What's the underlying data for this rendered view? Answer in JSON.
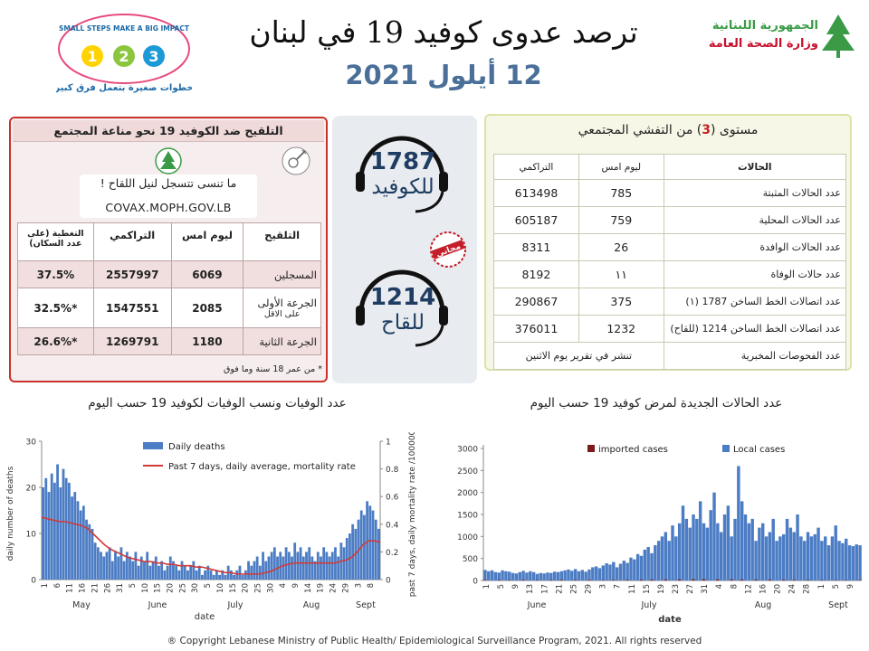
{
  "header": {
    "title": "ترصد عدوى كوفيد 19 في لبنان",
    "date": "12 أيلول 2021",
    "ministry_line1": "الجمهورية اللبنانية",
    "ministry_line2": "وزارة الصحة العامة",
    "campaign_banner": "SMALL STEPS MAKE A BIG IMPACT",
    "campaign_tagline": "خطوات صغيرة بتعمل فرق كبير",
    "campaign_numbers": [
      "1",
      "2",
      "3"
    ]
  },
  "vaccination": {
    "title": "التلقيح ضد الكوفيد 19 نحو مناعة المجتمع",
    "reminder": "ما تنسى تتسجل لنيل اللقاح !",
    "url": "COVAX.MOPH.GOV.LB",
    "headers": [
      "التلقيح",
      "ليوم امس",
      "التراكمي",
      "التغطية (على عدد السكان)"
    ],
    "rows": [
      {
        "label": "المسجلين",
        "label2": "",
        "yesterday": "6069",
        "cumulative": "2557997",
        "coverage": "37.5%"
      },
      {
        "label": "الجرعة الأولى",
        "label2": "على الاقل",
        "yesterday": "2085",
        "cumulative": "1547551",
        "coverage": "*32.5%"
      },
      {
        "label": "الجرعة الثانية",
        "label2": "",
        "yesterday": "1180",
        "cumulative": "1269791",
        "coverage": "*26.6%"
      }
    ],
    "footnote": "* من عمر 18 سنة وما فوق"
  },
  "hotlines": {
    "covid_number": "1787",
    "covid_label": "للكوفيد",
    "vaccine_number": "1214",
    "vaccine_label": "للقاح",
    "stamp_text": "مجاني"
  },
  "stage": {
    "title_prefix": "مستوى (",
    "level": "3",
    "title_suffix": ") من التفشي المجتمعي",
    "headers": [
      "الحالات",
      "ليوم امس",
      "التراكمي"
    ],
    "rows": [
      {
        "label": "عدد الحالات المثبتة",
        "yesterday": "785",
        "cumulative": "613498"
      },
      {
        "label": "عدد الحالات المحلية",
        "yesterday": "759",
        "cumulative": "605187"
      },
      {
        "label": "عدد الحالات الوافدة",
        "yesterday": "26",
        "cumulative": "8311"
      },
      {
        "label": "عدد حالات الوفاة",
        "yesterday": "١١",
        "cumulative": "8192"
      },
      {
        "label": "عدد اتصالات الخط الساخن 1787 (١)",
        "yesterday": "375",
        "cumulative": "290867"
      },
      {
        "label": "عدد اتصالات الخط الساخن 1214 (للقاح)",
        "yesterday": "1232",
        "cumulative": "376011"
      }
    ],
    "lab_tests_label": "عدد الفحوصات المخبرية",
    "lab_tests_note": "تنشر في تقرير يوم الاثنين"
  },
  "charts": {
    "deaths_title": "عدد الوفيات ونسب الوفيات لكوفيد 19 حسب اليوم",
    "cases_title": "عدد الحالات الجديدة لمرض كوفيد 19 حسب اليوم"
  },
  "footer": {
    "copyright": "® Copyright Lebanese Ministry of Public Health/ Epidemiological Surveillance Program, 2021. All rights reserved"
  },
  "colors": {
    "bar_blue": "#4b7cc4",
    "rate_red": "#d23a3a",
    "imported": "#7a1c1c",
    "vax_border": "#c9322c",
    "date_blue": "#4a6f98",
    "hotline_navy": "#1f3d62"
  },
  "chart_data": [
    {
      "type": "bar",
      "xlabel": "date",
      "ylabel": "daily number of deaths",
      "ylabel_right": "past 7 days, daily mortality rate /100000",
      "ylim": [
        0,
        30
      ],
      "ylim_right": [
        0,
        1
      ],
      "yticks": [
        0,
        10,
        20,
        30
      ],
      "yticks_right": [
        "0",
        "0.2",
        "0.4",
        "0.6",
        "0.8",
        "1"
      ],
      "x_day_ticks": [
        "1",
        "6",
        "11",
        "16",
        "21",
        "26",
        "31",
        "5",
        "10",
        "15",
        "20",
        "25",
        "30",
        "5",
        "10",
        "15",
        "20",
        "25",
        "30",
        "4",
        "9",
        "14",
        "19",
        "24",
        "29",
        "3",
        "8"
      ],
      "x_month_labels": [
        "May",
        "June",
        "July",
        "Aug",
        "Sept"
      ],
      "legend_position": "top",
      "series": [
        {
          "name": "Daily deaths",
          "kind": "bar",
          "values": [
            20,
            22,
            19,
            23,
            21,
            25,
            20,
            24,
            22,
            21,
            18,
            19,
            17,
            15,
            16,
            13,
            12,
            11,
            8,
            7,
            6,
            5,
            6,
            7,
            4,
            6,
            5,
            7,
            4,
            6,
            5,
            4,
            6,
            3,
            5,
            4,
            6,
            3,
            4,
            5,
            3,
            4,
            2,
            3,
            5,
            4,
            3,
            2,
            4,
            3,
            2,
            3,
            4,
            2,
            3,
            1,
            2,
            3,
            2,
            1,
            2,
            1,
            2,
            1,
            3,
            2,
            1,
            2,
            3,
            1,
            2,
            4,
            3,
            4,
            5,
            3,
            6,
            4,
            5,
            6,
            7,
            5,
            6,
            5,
            7,
            6,
            5,
            8,
            6,
            7,
            5,
            6,
            7,
            5,
            4,
            6,
            5,
            7,
            6,
            5,
            6,
            7,
            5,
            8,
            7,
            9,
            10,
            12,
            11,
            13,
            15,
            14,
            17,
            16,
            15,
            13,
            11
          ]
        },
        {
          "name": "Past 7 days, daily average, mortality rate",
          "kind": "line",
          "values": [
            0.45,
            0.44,
            0.43,
            0.42,
            0.42,
            0.41,
            0.4,
            0.39,
            0.37,
            0.33,
            0.29,
            0.25,
            0.22,
            0.2,
            0.18,
            0.16,
            0.15,
            0.14,
            0.13,
            0.13,
            0.12,
            0.12,
            0.11,
            0.11,
            0.1,
            0.1,
            0.1,
            0.09,
            0.09,
            0.08,
            0.07,
            0.06,
            0.05,
            0.05,
            0.04,
            0.04,
            0.04,
            0.04,
            0.04,
            0.05,
            0.06,
            0.08,
            0.1,
            0.11,
            0.12,
            0.12,
            0.12,
            0.12,
            0.12,
            0.12,
            0.12,
            0.12,
            0.13,
            0.14,
            0.16,
            0.2,
            0.25,
            0.28,
            0.28,
            0.27
          ]
        }
      ]
    },
    {
      "type": "bar",
      "xlabel": "date",
      "ylabel": "",
      "ylim": [
        0,
        3000
      ],
      "yticks": [
        0,
        500,
        1000,
        1500,
        2000,
        2500,
        3000
      ],
      "x_day_ticks": [
        "1",
        "5",
        "9",
        "13",
        "17",
        "21",
        "25",
        "29",
        "3",
        "7",
        "11",
        "15",
        "19",
        "23",
        "27",
        "31",
        "4",
        "8",
        "12",
        "16",
        "20",
        "24",
        "28",
        "1",
        "5",
        "9"
      ],
      "x_month_labels": [
        "June",
        "July",
        "Aug",
        "Sept"
      ],
      "legend_position": "top",
      "series": [
        {
          "name": "imported cases",
          "kind": "bar",
          "values": [
            10,
            12,
            9,
            15,
            8,
            11,
            14,
            10,
            12,
            9,
            13,
            15,
            18,
            20,
            22,
            25,
            28,
            30,
            26,
            24,
            22,
            20,
            18,
            16,
            14,
            12,
            10,
            9,
            8,
            7
          ]
        },
        {
          "name": "Local cases",
          "kind": "bar",
          "values": [
            240,
            210,
            230,
            190,
            180,
            230,
            210,
            200,
            170,
            160,
            190,
            220,
            180,
            210,
            190,
            150,
            170,
            160,
            180,
            170,
            200,
            190,
            210,
            230,
            250,
            220,
            260,
            210,
            240,
            200,
            250,
            300,
            320,
            280,
            340,
            390,
            360,
            420,
            300,
            380,
            450,
            400,
            520,
            480,
            600,
            560,
            700,
            760,
            620,
            800,
            900,
            1000,
            1100,
            900,
            1250,
            1000,
            1300,
            1700,
            1400,
            1200,
            1500,
            1400,
            1800,
            1300,
            1200,
            1600,
            2000,
            1300,
            1100,
            1500,
            1700,
            1000,
            1400,
            2600,
            1800,
            1500,
            1300,
            1400,
            900,
            1200,
            1300,
            1000,
            1100,
            1400,
            900,
            1000,
            1050,
            1400,
            1200,
            1100,
            1500,
            1000,
            900,
            1100,
            1000,
            1050,
            1200,
            900,
            1000,
            800,
            1000,
            1250,
            900,
            850,
            950,
            800,
            780,
            820,
            800
          ]
        }
      ]
    }
  ]
}
